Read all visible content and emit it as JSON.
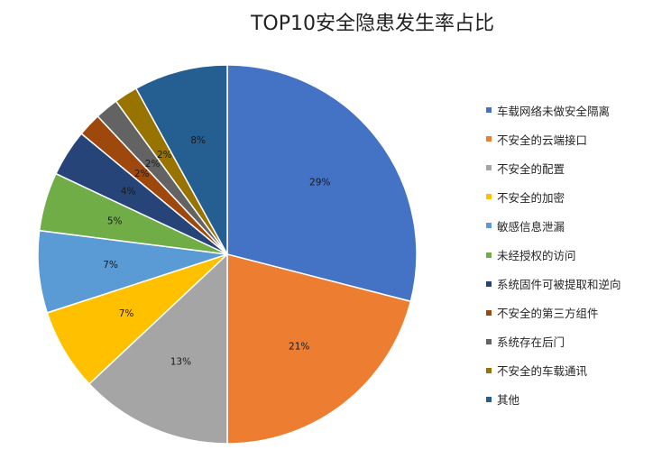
{
  "chart_data": {
    "type": "pie",
    "title": "TOP10安全隐患发生率占比",
    "categories": [
      "车载网络未做安全隔离",
      "不安全的云端接口",
      "不安全的配置",
      "不安全的加密",
      "敏感信息泄漏",
      "未经授权的访问",
      "系统固件可被提取和逆向",
      "不安全的第三方组件",
      "系统存在后门",
      "不安全的车载通讯",
      "其他"
    ],
    "values": [
      29,
      21,
      13,
      7,
      7,
      5,
      4,
      2,
      2,
      2,
      8
    ],
    "data_labels": [
      "29%",
      "21%",
      "13%",
      "7%",
      "7%",
      "5%",
      "4%",
      "2%",
      "2%",
      "2%",
      "8%"
    ],
    "colors": [
      "#4472C4",
      "#ED7D31",
      "#A5A5A5",
      "#FFC000",
      "#5B9BD5",
      "#70AD47",
      "#264478",
      "#9E480E",
      "#636363",
      "#997300",
      "#255E91"
    ],
    "legend_position": "right"
  }
}
